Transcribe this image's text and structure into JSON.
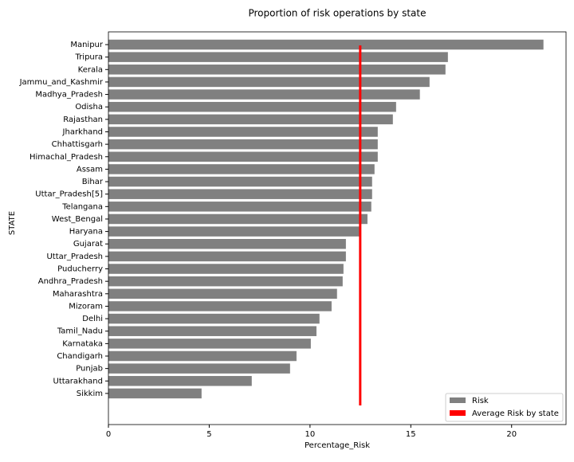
{
  "chart_data": {
    "type": "barh",
    "title": "Proportion of risk operations by state",
    "xlabel": "Percentage_Risk",
    "ylabel": "STATE",
    "categories": [
      "Manipur",
      "Tripura",
      "Kerala",
      "Jammu_and_Kashmir",
      "Madhya_Pradesh",
      "Odisha",
      "Rajasthan",
      "Jharkhand",
      "Chhattisgarh",
      "Himachal_Pradesh",
      "Assam",
      "Bihar",
      "Uttar_Pradesh[5]",
      "Telangana",
      "West_Bengal",
      "Haryana",
      "Gujarat",
      "Uttar_Pradesh",
      "Puducherry",
      "Andhra_Pradesh",
      "Maharashtra",
      "Mizoram",
      "Delhi",
      "Tamil_Nadu",
      "Karnataka",
      "Chandigarh",
      "Punjab",
      "Uttarakhand",
      "Sikkim"
    ],
    "series": [
      {
        "name": "Risk",
        "color": "#808080",
        "values": [
          21.58,
          16.84,
          16.72,
          15.93,
          15.45,
          14.27,
          14.11,
          13.36,
          13.36,
          13.36,
          13.2,
          13.08,
          13.08,
          13.04,
          12.85,
          12.49,
          11.78,
          11.78,
          11.66,
          11.62,
          11.34,
          11.07,
          10.47,
          10.32,
          10.04,
          9.33,
          9.01,
          7.11,
          4.62
        ]
      }
    ],
    "reference_line": {
      "name": "Average Risk by state",
      "value": 12.49,
      "color": "#ff0000"
    },
    "xlim": [
      0,
      22.7
    ],
    "xticks": [
      0,
      5,
      10,
      15,
      20
    ],
    "legend": "lower right"
  }
}
